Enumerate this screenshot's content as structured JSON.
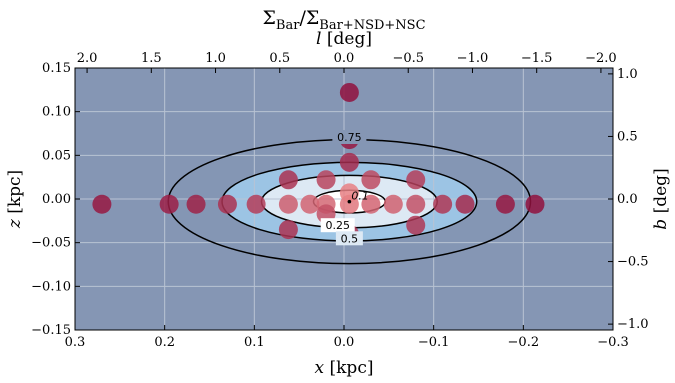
{
  "chart_data": {
    "type": "scatter",
    "title": "Σ_Bar/Σ_Bar+NSD+NSC",
    "title_main": "Σ",
    "title_main_sub": "Bar",
    "title_slash": "/Σ",
    "title_den_sub": "Bar+NSD+NSC",
    "xlabel": "x [kpc]",
    "xlabel_var": "x",
    "xlabel_unit": "[kpc]",
    "ylabel": "z [kpc]",
    "ylabel_var": "z",
    "ylabel_unit": "[kpc]",
    "top_xlabel": "l [deg]",
    "top_xlabel_var": "l",
    "top_xlabel_unit": "[deg]",
    "right_ylabel": "b [deg]",
    "right_ylabel_var": "b",
    "right_ylabel_unit": "[deg]",
    "xlim": [
      0.3,
      -0.3
    ],
    "ylim": [
      -0.15,
      0.15
    ],
    "x_ticks": [
      0.3,
      0.2,
      0.1,
      0.0,
      -0.1,
      -0.2,
      -0.3
    ],
    "x_tick_labels": [
      "0.3",
      "0.2",
      "0.1",
      "0.0",
      "−0.1",
      "−0.2",
      "−0.3"
    ],
    "y_ticks": [
      -0.15,
      -0.1,
      -0.05,
      0.0,
      0.05,
      0.1,
      0.15
    ],
    "y_tick_labels": [
      "−0.15",
      "−0.10",
      "−0.05",
      "0.00",
      "0.05",
      "0.10",
      "0.15"
    ],
    "top_ticks_deg": [
      2.0,
      1.5,
      1.0,
      0.5,
      0.0,
      -0.5,
      -1.0,
      -1.5,
      -2.0
    ],
    "top_tick_labels": [
      "2.0",
      "1.5",
      "1.0",
      "0.5",
      "0.0",
      "−0.5",
      "−1.0",
      "−1.5",
      "−2.0"
    ],
    "right_ticks_deg": [
      -1.0,
      -0.5,
      0.0,
      0.5,
      1.0
    ],
    "right_tick_labels": [
      "−1.0",
      "−0.5",
      "0.0",
      "0.5",
      "1.0"
    ],
    "deg_per_kpc": 6.98,
    "grid": true,
    "contours": [
      {
        "level": 0.1,
        "label": "0.1",
        "a": 0.04,
        "b": 0.013,
        "fill": "#ffffff"
      },
      {
        "level": 0.25,
        "label": "0.25",
        "a": 0.098,
        "b": 0.03,
        "fill": "#dde9f4"
      },
      {
        "level": 0.5,
        "label": "0.5",
        "a": 0.142,
        "b": 0.045,
        "fill": "#9cc4e4"
      },
      {
        "level": 0.75,
        "label": "0.75",
        "a": 0.202,
        "b": 0.071,
        "fill": "#8496b4"
      }
    ],
    "center": [
      -0.006,
      -0.003
    ],
    "points": [
      {
        "x": 0.27,
        "z": -0.006,
        "value": 0.9
      },
      {
        "x": 0.195,
        "z": -0.006,
        "value": 0.85
      },
      {
        "x": 0.165,
        "z": -0.006,
        "value": 0.82
      },
      {
        "x": 0.13,
        "z": -0.006,
        "value": 0.7
      },
      {
        "x": 0.098,
        "z": -0.006,
        "value": 0.6
      },
      {
        "x": 0.062,
        "z": -0.006,
        "value": 0.35
      },
      {
        "x": 0.038,
        "z": -0.006,
        "value": 0.3
      },
      {
        "x": 0.02,
        "z": -0.006,
        "value": 0.28
      },
      {
        "x": -0.006,
        "z": -0.006,
        "value": 0.15
      },
      {
        "x": -0.03,
        "z": -0.006,
        "value": 0.3
      },
      {
        "x": -0.055,
        "z": -0.006,
        "value": 0.32
      },
      {
        "x": -0.08,
        "z": -0.006,
        "value": 0.45
      },
      {
        "x": -0.11,
        "z": -0.006,
        "value": 0.65
      },
      {
        "x": -0.135,
        "z": -0.006,
        "value": 0.75
      },
      {
        "x": -0.18,
        "z": -0.006,
        "value": 0.9
      },
      {
        "x": -0.213,
        "z": -0.006,
        "value": 0.95
      },
      {
        "x": -0.006,
        "z": 0.122,
        "value": 0.95
      },
      {
        "x": -0.006,
        "z": 0.068,
        "value": 0.9
      },
      {
        "x": -0.006,
        "z": 0.042,
        "value": 0.75
      },
      {
        "x": -0.006,
        "z": 0.007,
        "value": 0.08
      },
      {
        "x": -0.006,
        "z": -0.04,
        "value": 0.65
      },
      {
        "x": 0.062,
        "z": 0.022,
        "value": 0.7
      },
      {
        "x": 0.02,
        "z": 0.022,
        "value": 0.55
      },
      {
        "x": 0.062,
        "z": -0.035,
        "value": 0.7
      },
      {
        "x": 0.02,
        "z": -0.017,
        "value": 0.45
      },
      {
        "x": -0.03,
        "z": 0.022,
        "value": 0.5
      },
      {
        "x": -0.08,
        "z": 0.022,
        "value": 0.6
      },
      {
        "x": -0.08,
        "z": -0.03,
        "value": 0.65
      }
    ]
  }
}
